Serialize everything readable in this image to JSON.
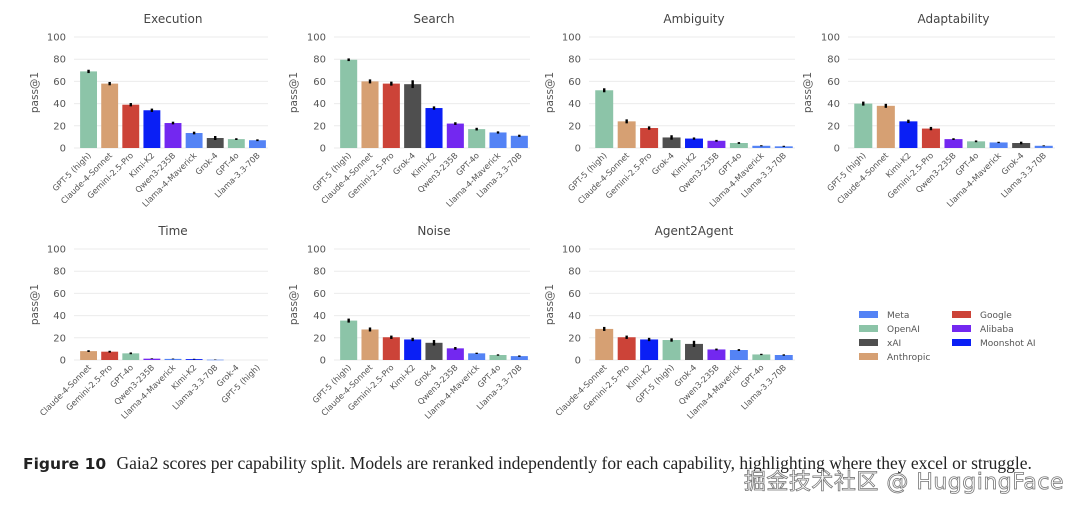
{
  "legend": {
    "entries": [
      {
        "name": "Meta",
        "color": "#5483f5"
      },
      {
        "name": "OpenAI",
        "color": "#8cc4a8"
      },
      {
        "name": "xAI",
        "color": "#4f4f4f"
      },
      {
        "name": "Anthropic",
        "color": "#d6a073"
      },
      {
        "name": "Google",
        "color": "#cc4338"
      },
      {
        "name": "Alibaba",
        "color": "#7328f0"
      },
      {
        "name": "Moonshot AI",
        "color": "#0a1ff5"
      }
    ]
  },
  "chart_data": [
    {
      "type": "bar",
      "title": "Execution",
      "xlabel": "",
      "ylabel": "pass@1",
      "ylim": [
        0,
        100
      ],
      "yticks": [
        0,
        20,
        40,
        60,
        80,
        100
      ],
      "grid": true,
      "categories": [
        "GPT-5 (high)",
        "Claude-4-Sonnet",
        "Gemini-2.5-Pro",
        "Kimi-K2",
        "Qwen3-235B",
        "Llama-4-Maverick",
        "Grok-4",
        "GPT-4o",
        "Llama-3.3-70B"
      ],
      "providers": [
        "OpenAI",
        "Anthropic",
        "Google",
        "Moonshot AI",
        "Alibaba",
        "Meta",
        "xAI",
        "OpenAI",
        "Meta"
      ],
      "values": [
        69,
        58,
        39,
        34,
        22.5,
        13.5,
        9,
        8,
        7
      ],
      "errors": [
        1.5,
        1.5,
        1.5,
        1.5,
        1.2,
        1.2,
        1.8,
        0.8,
        0.8
      ]
    },
    {
      "type": "bar",
      "title": "Search",
      "xlabel": "",
      "ylabel": "pass@1",
      "ylim": [
        0,
        100
      ],
      "yticks": [
        0,
        20,
        40,
        60,
        80,
        100
      ],
      "grid": true,
      "categories": [
        "GPT-5 (high)",
        "Claude-4-Sonnet",
        "Gemini-2.5-Pro",
        "Grok-4",
        "Kimi-K2",
        "Qwen3-235B",
        "GPT-4o",
        "Llama-4-Maverick",
        "Llama-3.3-70B"
      ],
      "providers": [
        "OpenAI",
        "Anthropic",
        "Google",
        "xAI",
        "Moonshot AI",
        "Alibaba",
        "OpenAI",
        "Meta",
        "Meta"
      ],
      "values": [
        79.5,
        60,
        58,
        57.5,
        36,
        22,
        17,
        14,
        11
      ],
      "errors": [
        1.2,
        1.8,
        1.8,
        3.5,
        1.5,
        1.2,
        1.2,
        1.0,
        1.0
      ]
    },
    {
      "type": "bar",
      "title": "Ambiguity",
      "xlabel": "",
      "ylabel": "pass@1",
      "ylim": [
        0,
        100
      ],
      "yticks": [
        0,
        20,
        40,
        60,
        80,
        100
      ],
      "grid": true,
      "categories": [
        "GPT-5 (high)",
        "Claude-4-Sonnet",
        "Gemini-2.5-Pro",
        "Grok-4",
        "Kimi-K2",
        "Qwen3-235B",
        "GPT-4o",
        "Llama-4-Maverick",
        "Llama-3.3-70B"
      ],
      "providers": [
        "OpenAI",
        "Anthropic",
        "Google",
        "xAI",
        "Moonshot AI",
        "Alibaba",
        "OpenAI",
        "Meta",
        "Meta"
      ],
      "values": [
        52,
        24,
        18,
        9.5,
        8.5,
        6.5,
        4.5,
        2,
        1.5
      ],
      "errors": [
        1.8,
        1.8,
        1.5,
        2.0,
        1.0,
        0.8,
        0.8,
        0.5,
        0.5
      ]
    },
    {
      "type": "bar",
      "title": "Adaptability",
      "xlabel": "",
      "ylabel": "pass@1",
      "ylim": [
        0,
        100
      ],
      "yticks": [
        0,
        20,
        40,
        60,
        80,
        100
      ],
      "grid": true,
      "categories": [
        "GPT-5 (high)",
        "Claude-4-Sonnet",
        "Kimi-K2",
        "Gemini-2.5-Pro",
        "Qwen3-235B",
        "GPT-4o",
        "Llama-4-Maverick",
        "Grok-4",
        "Llama-3.3-70B"
      ],
      "providers": [
        "OpenAI",
        "Anthropic",
        "Moonshot AI",
        "Google",
        "Alibaba",
        "OpenAI",
        "Meta",
        "xAI",
        "Meta"
      ],
      "values": [
        40,
        38,
        24,
        17.5,
        8,
        6,
        5,
        4.5,
        2
      ],
      "errors": [
        1.8,
        1.8,
        1.5,
        1.5,
        0.8,
        0.8,
        0.6,
        1.2,
        0.4
      ]
    },
    {
      "type": "bar",
      "title": "Time",
      "xlabel": "",
      "ylabel": "pass@1",
      "ylim": [
        0,
        100
      ],
      "yticks": [
        0,
        20,
        40,
        60,
        80,
        100
      ],
      "grid": true,
      "categories": [
        "Claude-4-Sonnet",
        "Gemini-2.5-Pro",
        "GPT-4o",
        "Qwen3-235B",
        "Llama-4-Maverick",
        "Kimi-K2",
        "Llama-3.3-70B",
        "Grok-4",
        "GPT-5 (high)"
      ],
      "providers": [
        "Anthropic",
        "Google",
        "OpenAI",
        "Alibaba",
        "Meta",
        "Moonshot AI",
        "Meta",
        "xAI",
        "OpenAI"
      ],
      "values": [
        8,
        7.5,
        6,
        1.2,
        1,
        0.8,
        0.3,
        0,
        0
      ],
      "errors": [
        0.8,
        0.8,
        0.8,
        0.3,
        0.3,
        0.3,
        0.2,
        0,
        0
      ]
    },
    {
      "type": "bar",
      "title": "Noise",
      "xlabel": "",
      "ylabel": "pass@1",
      "ylim": [
        0,
        100
      ],
      "yticks": [
        0,
        20,
        40,
        60,
        80,
        100
      ],
      "grid": true,
      "categories": [
        "GPT-5 (high)",
        "Claude-4-Sonnet",
        "Gemini-2.5-Pro",
        "Kimi-K2",
        "Grok-4",
        "Qwen3-235B",
        "Llama-4-Maverick",
        "GPT-4o",
        "Llama-3.3-70B"
      ],
      "providers": [
        "OpenAI",
        "Anthropic",
        "Google",
        "Moonshot AI",
        "xAI",
        "Alibaba",
        "Meta",
        "OpenAI",
        "Meta"
      ],
      "values": [
        35.5,
        27.5,
        20.5,
        18.5,
        15.5,
        10.5,
        6,
        4.5,
        3.5
      ],
      "errors": [
        1.8,
        1.8,
        1.5,
        1.5,
        2.5,
        1.2,
        0.6,
        0.6,
        0.6
      ]
    },
    {
      "type": "bar",
      "title": "Agent2Agent",
      "xlabel": "",
      "ylabel": "pass@1",
      "ylim": [
        0,
        100
      ],
      "yticks": [
        0,
        20,
        40,
        60,
        80,
        100
      ],
      "grid": true,
      "categories": [
        "Claude-4-Sonnet",
        "Gemini-2.5-Pro",
        "Kimi-K2",
        "GPT-5 (high)",
        "Grok-4",
        "Qwen3-235B",
        "Llama-4-Maverick",
        "GPT-4o",
        "Llama-3.3-70B"
      ],
      "providers": [
        "Anthropic",
        "Google",
        "Moonshot AI",
        "OpenAI",
        "xAI",
        "Alibaba",
        "Meta",
        "OpenAI",
        "Meta"
      ],
      "values": [
        28,
        20.5,
        18.5,
        18,
        14.5,
        9.5,
        9,
        5,
        4.5
      ],
      "errors": [
        1.8,
        1.5,
        1.5,
        1.5,
        2.8,
        0.8,
        0.8,
        0.6,
        0.6
      ]
    }
  ],
  "caption": {
    "figure_number": "Figure 10",
    "text": "Gaia2 scores per capability split. Models are reranked independently for each capability, highlighting where they excel or struggle."
  },
  "watermark": "掘金技术社区 @ HuggingFace"
}
